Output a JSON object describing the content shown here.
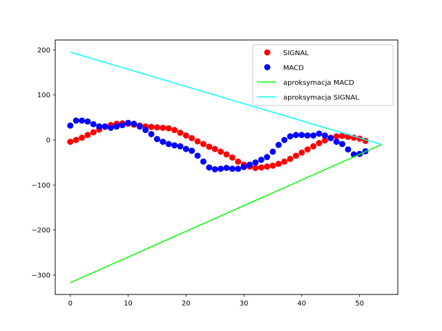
{
  "chart_data": {
    "type": "scatter",
    "title": "",
    "xlabel": "",
    "ylabel": "",
    "xlim": [
      -2.6,
      56.6
    ],
    "ylim": [
      -343,
      222
    ],
    "xticks": [
      0,
      10,
      20,
      30,
      40,
      50
    ],
    "yticks": [
      -300,
      -200,
      -100,
      0,
      100,
      200
    ],
    "grid": false,
    "legend_position": "top-right",
    "series": [
      {
        "name": "SIGNAL",
        "kind": "scatter",
        "color": "#ff0000",
        "x": [
          0,
          1,
          2,
          3,
          4,
          5,
          6,
          7,
          8,
          9,
          10,
          11,
          12,
          13,
          14,
          15,
          16,
          17,
          18,
          19,
          20,
          21,
          22,
          23,
          24,
          25,
          26,
          27,
          28,
          29,
          30,
          31,
          32,
          33,
          34,
          35,
          36,
          37,
          38,
          39,
          40,
          41,
          42,
          43,
          44,
          45,
          46,
          47,
          48,
          49,
          50,
          51
        ],
        "y": [
          -4,
          0,
          5,
          11,
          17,
          23,
          29,
          33,
          36,
          37,
          36,
          34,
          32,
          30,
          29,
          28,
          27,
          26,
          22,
          16,
          10,
          4,
          -3,
          -9,
          -15,
          -20,
          -26,
          -32,
          -39,
          -48,
          -55,
          -59,
          -62,
          -61,
          -59,
          -57,
          -53,
          -48,
          -42,
          -35,
          -28,
          -21,
          -14,
          -7,
          -1,
          5,
          8,
          9,
          7,
          5,
          3,
          -2
        ]
      },
      {
        "name": "MACD",
        "kind": "scatter",
        "color": "#0000ff",
        "x": [
          0,
          1,
          2,
          3,
          4,
          5,
          6,
          7,
          8,
          9,
          10,
          11,
          12,
          13,
          14,
          15,
          16,
          17,
          18,
          19,
          20,
          21,
          22,
          23,
          24,
          25,
          26,
          27,
          28,
          29,
          30,
          31,
          32,
          33,
          34,
          35,
          36,
          37,
          38,
          39,
          40,
          41,
          42,
          43,
          44,
          45,
          46,
          47,
          48,
          49,
          50,
          51
        ],
        "y": [
          32,
          43,
          43,
          41,
          35,
          30,
          30,
          27,
          30,
          33,
          38,
          36,
          30,
          22,
          13,
          2,
          -4,
          -9,
          -12,
          -14,
          -20,
          -24,
          -35,
          -48,
          -61,
          -65,
          -64,
          -62,
          -64,
          -64,
          -60,
          -55,
          -50,
          -44,
          -38,
          -26,
          -11,
          0,
          8,
          11,
          11,
          10,
          10,
          14,
          10,
          4,
          -4,
          -9,
          -21,
          -32,
          -31,
          -25
        ]
      },
      {
        "name": "aproksymacja MACD",
        "kind": "line",
        "color": "#00ff00",
        "x": [
          0,
          53.8
        ],
        "y": [
          -317,
          -10
        ]
      },
      {
        "name": "aproksymacja SIGNAL",
        "kind": "line",
        "color": "#00ffff",
        "x": [
          0,
          53.8
        ],
        "y": [
          195,
          -10
        ]
      }
    ]
  }
}
